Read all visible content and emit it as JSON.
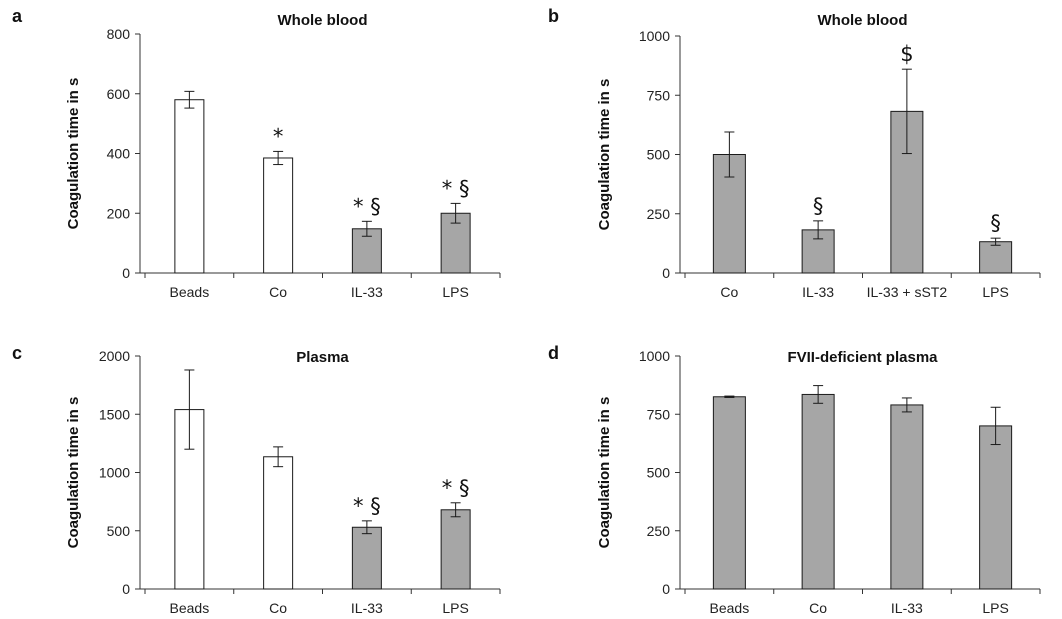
{
  "chart_data": [
    {
      "panel": "a",
      "type": "bar",
      "title": "Whole blood",
      "ylabel": "Coagulation time in s",
      "xlabel": "",
      "ylim": [
        0,
        800
      ],
      "yticks": [
        0,
        200,
        400,
        600,
        800
      ],
      "categories": [
        "Beads",
        "Co",
        "IL-33",
        "LPS"
      ],
      "values": [
        580,
        385,
        148,
        200
      ],
      "errors": [
        28,
        22,
        25,
        33
      ],
      "fills": [
        "white",
        "white",
        "gray",
        "gray"
      ],
      "annotations": [
        "",
        "*",
        "* §",
        "* §"
      ]
    },
    {
      "panel": "b",
      "type": "bar",
      "title": "Whole blood",
      "ylabel": "Coagulation time in s",
      "xlabel": "",
      "ylim": [
        0,
        1000
      ],
      "yticks": [
        0,
        250,
        500,
        750,
        1000
      ],
      "categories": [
        "Co",
        "IL-33",
        "IL-33 + sST2",
        "LPS"
      ],
      "values": [
        500,
        182,
        682,
        132
      ],
      "errors": [
        95,
        38,
        178,
        15
      ],
      "fills": [
        "gray",
        "gray",
        "gray",
        "gray"
      ],
      "annotations": [
        "",
        "§",
        "$",
        "§"
      ]
    },
    {
      "panel": "c",
      "type": "bar",
      "title": "Plasma",
      "ylabel": "Coagulation time in s",
      "xlabel": "",
      "ylim": [
        0,
        2000
      ],
      "yticks": [
        0,
        500,
        1000,
        1500,
        2000
      ],
      "categories": [
        "Beads",
        "Co",
        "IL-33",
        "LPS"
      ],
      "values": [
        1540,
        1135,
        530,
        680
      ],
      "errors": [
        340,
        85,
        55,
        60
      ],
      "fills": [
        "white",
        "white",
        "gray",
        "gray"
      ],
      "annotations": [
        "",
        "",
        "* §",
        "* §"
      ]
    },
    {
      "panel": "d",
      "type": "bar",
      "title": "FVII-deficient plasma",
      "ylabel": "Coagulation time in s",
      "xlabel": "",
      "ylim": [
        0,
        1000
      ],
      "yticks": [
        0,
        250,
        500,
        750,
        1000
      ],
      "categories": [
        "Beads",
        "Co",
        "IL-33",
        "LPS"
      ],
      "values": [
        825,
        835,
        790,
        700
      ],
      "errors": [
        3,
        38,
        30,
        80
      ],
      "fills": [
        "gray",
        "gray",
        "gray",
        "gray"
      ],
      "annotations": [
        "",
        "",
        "",
        ""
      ]
    }
  ],
  "colors": {
    "bar_white": "#ffffff",
    "bar_gray": "#a6a6a6",
    "stroke": "#1a1a1a"
  }
}
